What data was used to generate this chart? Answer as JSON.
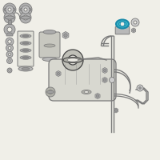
{
  "bg_color": "#f0efe8",
  "line_color": "#7a7a7a",
  "dark_color": "#444444",
  "mid_color": "#999999",
  "light_color": "#cccccc",
  "highlight_color": "#3ab5c8",
  "highlight_dark": "#1a8aaa",
  "fig_size": [
    2.0,
    2.0
  ],
  "dpi": 100
}
